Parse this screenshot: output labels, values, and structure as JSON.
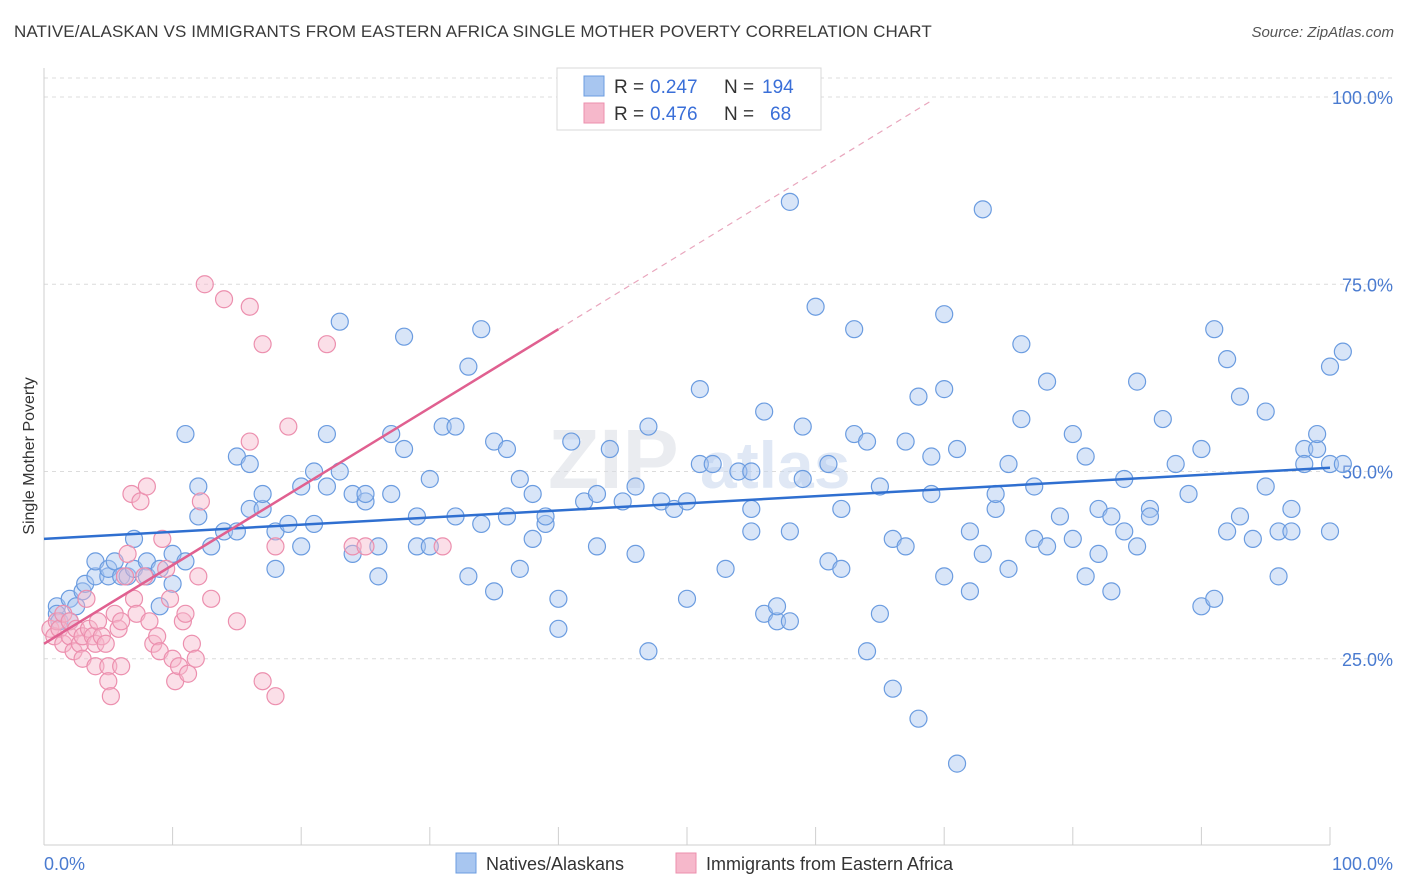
{
  "title": "NATIVE/ALASKAN VS IMMIGRANTS FROM EASTERN AFRICA SINGLE MOTHER POVERTY CORRELATION CHART",
  "source": "Source: ZipAtlas.com",
  "watermark": {
    "part1": "ZIP",
    "part2": "atlas"
  },
  "colors": {
    "blue_fill": "#a8c6f0",
    "blue_stroke": "#6b9ce0",
    "blue_line": "#2f6fd0",
    "pink_fill": "#f6b8cb",
    "pink_stroke": "#ec8fae",
    "pink_line": "#e06090",
    "tick_label": "#4a7bd0",
    "grid": "#dcdcdc"
  },
  "legend": {
    "rows": [
      {
        "r_label": "R =",
        "r_value": "0.247",
        "n_label": "N =",
        "n_value": "194"
      },
      {
        "r_label": "R =",
        "r_value": "0.476",
        "n_label": "N =",
        "n_value": "68"
      }
    ]
  },
  "chart_data": {
    "type": "scatter",
    "title": "NATIVE/ALASKAN VS IMMIGRANTS FROM EASTERN AFRICA SINGLE MOTHER POVERTY CORRELATION CHART",
    "xlabel": "",
    "ylabel": "Single Mother Poverty",
    "xlim": [
      0,
      100
    ],
    "ylim": [
      0,
      105
    ],
    "x_tick_labels": [
      "0.0%",
      "100.0%"
    ],
    "y_ticks": [
      25,
      50,
      75,
      100
    ],
    "y_tick_labels": [
      "25.0%",
      "50.0%",
      "75.0%",
      "100.0%"
    ],
    "grid": true,
    "legend_position": "top-center",
    "series": [
      {
        "name": "Natives/Alaskans",
        "R": 0.247,
        "N": 194,
        "trend": {
          "x": [
            0,
            100
          ],
          "y": [
            41.0,
            50.5
          ]
        },
        "points": [
          [
            1,
            32
          ],
          [
            1,
            31
          ],
          [
            1.2,
            30
          ],
          [
            2,
            33
          ],
          [
            2,
            30
          ],
          [
            2.5,
            32
          ],
          [
            3,
            34
          ],
          [
            3.2,
            35
          ],
          [
            4,
            36
          ],
          [
            4,
            38
          ],
          [
            5,
            36
          ],
          [
            5,
            37
          ],
          [
            5.5,
            38
          ],
          [
            6,
            36
          ],
          [
            6.5,
            36
          ],
          [
            7,
            37
          ],
          [
            7,
            41
          ],
          [
            8,
            38
          ],
          [
            8,
            36
          ],
          [
            9,
            37
          ],
          [
            9,
            32
          ],
          [
            10,
            39
          ],
          [
            10,
            35
          ],
          [
            11,
            38
          ],
          [
            11,
            55
          ],
          [
            12,
            48
          ],
          [
            12,
            44
          ],
          [
            13,
            40
          ],
          [
            14,
            42
          ],
          [
            15,
            52
          ],
          [
            15,
            42
          ],
          [
            16,
            45
          ],
          [
            16,
            51
          ],
          [
            17,
            45
          ],
          [
            17,
            47
          ],
          [
            18,
            42
          ],
          [
            18,
            37
          ],
          [
            19,
            43
          ],
          [
            20,
            48
          ],
          [
            20,
            40
          ],
          [
            21,
            43
          ],
          [
            21,
            50
          ],
          [
            22,
            55
          ],
          [
            22,
            48
          ],
          [
            23,
            50
          ],
          [
            23,
            70
          ],
          [
            24,
            39
          ],
          [
            24,
            47
          ],
          [
            25,
            46
          ],
          [
            25,
            47
          ],
          [
            26,
            40
          ],
          [
            26,
            36
          ],
          [
            27,
            47
          ],
          [
            27,
            55
          ],
          [
            28,
            68
          ],
          [
            28,
            53
          ],
          [
            29,
            44
          ],
          [
            29,
            40
          ],
          [
            30,
            40
          ],
          [
            30,
            49
          ],
          [
            31,
            56
          ],
          [
            32,
            56
          ],
          [
            32,
            44
          ],
          [
            33,
            64
          ],
          [
            33,
            36
          ],
          [
            34,
            69
          ],
          [
            34,
            43
          ],
          [
            35,
            34
          ],
          [
            35,
            54
          ],
          [
            36,
            53
          ],
          [
            36,
            44
          ],
          [
            37,
            49
          ],
          [
            37,
            37
          ],
          [
            38,
            41
          ],
          [
            38,
            47
          ],
          [
            39,
            43
          ],
          [
            39,
            44
          ],
          [
            40,
            29
          ],
          [
            40,
            33
          ],
          [
            41,
            54
          ],
          [
            42,
            46
          ],
          [
            43,
            47
          ],
          [
            43,
            40
          ],
          [
            44,
            53
          ],
          [
            45,
            46
          ],
          [
            46,
            39
          ],
          [
            46,
            48
          ],
          [
            47,
            26
          ],
          [
            47,
            56
          ],
          [
            48,
            46
          ],
          [
            49,
            45
          ],
          [
            50,
            46
          ],
          [
            50,
            33
          ],
          [
            51,
            61
          ],
          [
            51,
            51
          ],
          [
            52,
            51
          ],
          [
            53,
            37
          ],
          [
            54,
            50
          ],
          [
            55,
            42
          ],
          [
            55,
            45
          ],
          [
            55,
            50
          ],
          [
            56,
            31
          ],
          [
            56,
            58
          ],
          [
            57,
            30
          ],
          [
            57,
            32
          ],
          [
            58,
            30
          ],
          [
            58,
            42
          ],
          [
            58,
            86
          ],
          [
            59,
            49
          ],
          [
            59,
            56
          ],
          [
            60,
            72
          ],
          [
            61,
            51
          ],
          [
            61,
            38
          ],
          [
            62,
            37
          ],
          [
            62,
            45
          ],
          [
            63,
            55
          ],
          [
            63,
            69
          ],
          [
            64,
            26
          ],
          [
            64,
            54
          ],
          [
            65,
            31
          ],
          [
            65,
            48
          ],
          [
            66,
            41
          ],
          [
            66,
            21
          ],
          [
            67,
            40
          ],
          [
            67,
            54
          ],
          [
            68,
            60
          ],
          [
            68,
            17
          ],
          [
            69,
            47
          ],
          [
            69,
            52
          ],
          [
            70,
            61
          ],
          [
            70,
            36
          ],
          [
            70,
            71
          ],
          [
            71,
            53
          ],
          [
            71,
            11
          ],
          [
            72,
            34
          ],
          [
            72,
            42
          ],
          [
            73,
            39
          ],
          [
            73,
            85
          ],
          [
            74,
            45
          ],
          [
            74,
            47
          ],
          [
            75,
            37
          ],
          [
            75,
            51
          ],
          [
            76,
            57
          ],
          [
            76,
            67
          ],
          [
            77,
            41
          ],
          [
            77,
            48
          ],
          [
            78,
            62
          ],
          [
            78,
            40
          ],
          [
            79,
            44
          ],
          [
            80,
            41
          ],
          [
            80,
            55
          ],
          [
            81,
            36
          ],
          [
            81,
            52
          ],
          [
            82,
            39
          ],
          [
            82,
            45
          ],
          [
            83,
            44
          ],
          [
            83,
            34
          ],
          [
            84,
            49
          ],
          [
            84,
            42
          ],
          [
            85,
            40
          ],
          [
            85,
            62
          ],
          [
            86,
            45
          ],
          [
            86,
            44
          ],
          [
            87,
            57
          ],
          [
            88,
            51
          ],
          [
            89,
            47
          ],
          [
            90,
            53
          ],
          [
            90,
            32
          ],
          [
            91,
            69
          ],
          [
            91,
            33
          ],
          [
            92,
            42
          ],
          [
            92,
            65
          ],
          [
            93,
            60
          ],
          [
            93,
            44
          ],
          [
            94,
            41
          ],
          [
            95,
            48
          ],
          [
            95,
            58
          ],
          [
            96,
            42
          ],
          [
            96,
            36
          ],
          [
            97,
            45
          ],
          [
            97,
            42
          ],
          [
            98,
            53
          ],
          [
            98,
            51
          ],
          [
            99,
            53
          ],
          [
            99,
            55
          ],
          [
            100,
            51
          ],
          [
            100,
            64
          ],
          [
            101,
            51
          ],
          [
            101,
            66
          ],
          [
            100,
            42
          ]
        ]
      },
      {
        "name": "Immigrants from Eastern Africa",
        "R": 0.476,
        "N": 68,
        "trend": {
          "x": [
            0,
            40
          ],
          "y": [
            27.0,
            69.0
          ]
        },
        "trend_dashed": {
          "x": [
            40,
            69
          ],
          "y": [
            69.0,
            99.5
          ]
        },
        "points": [
          [
            0.5,
            29
          ],
          [
            0.8,
            28
          ],
          [
            1,
            30
          ],
          [
            1.2,
            29
          ],
          [
            1.5,
            27
          ],
          [
            1.5,
            31
          ],
          [
            2,
            28
          ],
          [
            2,
            30
          ],
          [
            2.3,
            26
          ],
          [
            2.5,
            29
          ],
          [
            2.8,
            27
          ],
          [
            3,
            28
          ],
          [
            3,
            25
          ],
          [
            3.3,
            33
          ],
          [
            3.5,
            29
          ],
          [
            3.8,
            28
          ],
          [
            4,
            24
          ],
          [
            4,
            27
          ],
          [
            4.2,
            30
          ],
          [
            4.5,
            28
          ],
          [
            4.8,
            27
          ],
          [
            5,
            24
          ],
          [
            5,
            22
          ],
          [
            5.2,
            20
          ],
          [
            5.5,
            31
          ],
          [
            5.8,
            29
          ],
          [
            6,
            30
          ],
          [
            6,
            24
          ],
          [
            6.3,
            36
          ],
          [
            6.5,
            39
          ],
          [
            6.8,
            47
          ],
          [
            7,
            33
          ],
          [
            7.2,
            31
          ],
          [
            7.5,
            46
          ],
          [
            7.8,
            36
          ],
          [
            8,
            48
          ],
          [
            8.2,
            30
          ],
          [
            8.5,
            27
          ],
          [
            8.8,
            28
          ],
          [
            9,
            26
          ],
          [
            9.2,
            41
          ],
          [
            9.5,
            37
          ],
          [
            9.8,
            33
          ],
          [
            10,
            25
          ],
          [
            10.2,
            22
          ],
          [
            10.5,
            24
          ],
          [
            10.8,
            30
          ],
          [
            11,
            31
          ],
          [
            11.2,
            23
          ],
          [
            11.5,
            27
          ],
          [
            11.8,
            25
          ],
          [
            12,
            36
          ],
          [
            12.2,
            46
          ],
          [
            12.5,
            75
          ],
          [
            13,
            33
          ],
          [
            14,
            73
          ],
          [
            15,
            30
          ],
          [
            16,
            72
          ],
          [
            16,
            54
          ],
          [
            17,
            67
          ],
          [
            17,
            22
          ],
          [
            18,
            20
          ],
          [
            18,
            40
          ],
          [
            19,
            56
          ],
          [
            22,
            67
          ],
          [
            24,
            40
          ],
          [
            25,
            40
          ],
          [
            31,
            40
          ]
        ]
      }
    ]
  },
  "bottom_legend": [
    {
      "label": "Natives/Alaskans"
    },
    {
      "label": "Immigrants from Eastern Africa"
    }
  ]
}
